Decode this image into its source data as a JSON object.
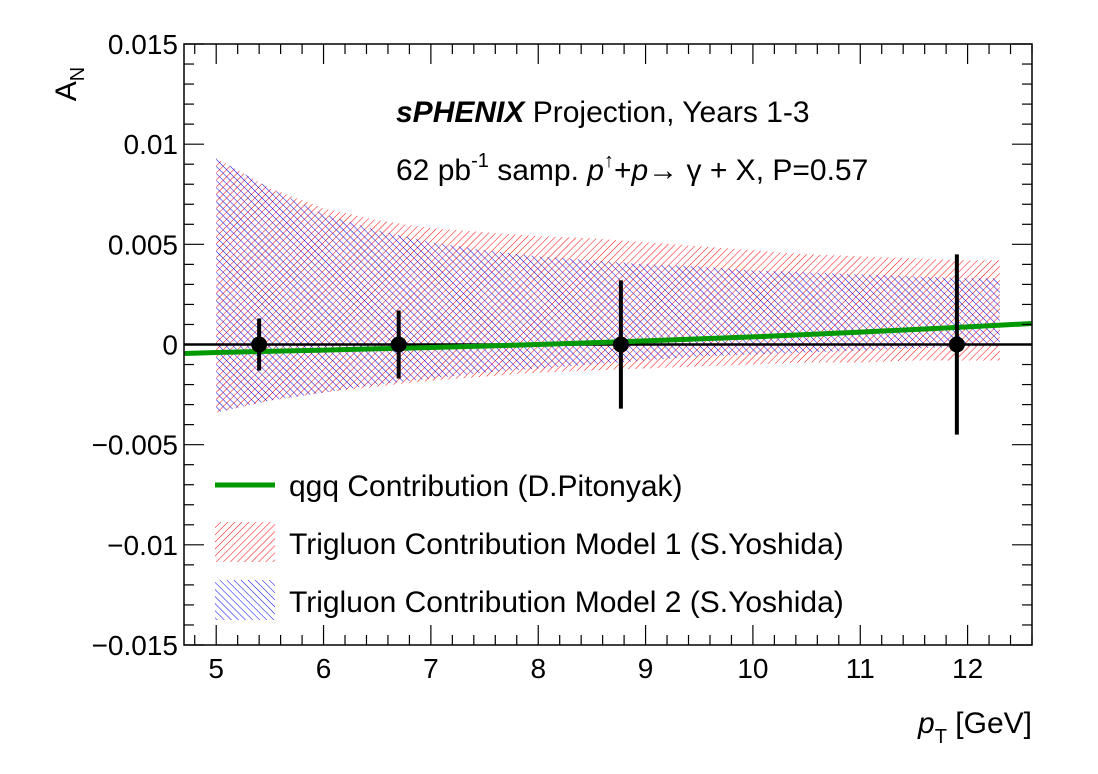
{
  "chart_data": {
    "type": "line",
    "xlabel_main": "p",
    "xlabel_sub": "T",
    "xlabel_unit": " [GeV]",
    "ylabel_main": "A",
    "ylabel_sub": "N",
    "xlim": [
      4.7,
      12.6
    ],
    "ylim": [
      -0.015,
      0.015
    ],
    "x_ticks": [
      5,
      6,
      7,
      8,
      9,
      10,
      11,
      12
    ],
    "x_tick_labels": [
      "5",
      "6",
      "7",
      "8",
      "9",
      "10",
      "11",
      "12"
    ],
    "y_ticks": [
      -0.015,
      -0.01,
      -0.005,
      0,
      0.005,
      0.01,
      0.015
    ],
    "y_tick_labels": [
      "−0.015",
      "−0.01",
      "−0.005",
      "0",
      "0.005",
      "0.01",
      "0.015"
    ],
    "annotation": {
      "line1_bold": "sPHENIX",
      "line1_rest": " Projection, Years 1-3",
      "line2_a": "62 pb",
      "line2_sup": "-1",
      "line2_b": " samp. ",
      "line2_p1": "p",
      "line2_arrow": "↑",
      "line2_plus": "+",
      "line2_p2": "p",
      "line2_rest": "→ γ + X, P=0.57"
    },
    "series": [
      {
        "name": "qgq Contribution (D.Pitonyak)",
        "kind": "line",
        "color": "#009900",
        "x": [
          4.7,
          5,
          6,
          7,
          8,
          9,
          10,
          11,
          12,
          12.6
        ],
        "y": [
          -0.00045,
          -0.0004,
          -0.00028,
          -0.00015,
          0.0,
          0.00018,
          0.00038,
          0.00062,
          0.00088,
          0.00105
        ]
      },
      {
        "name": "Trigluon Contribution Model 1 (S.Yoshida)",
        "kind": "band",
        "color": "#ff0000",
        "x": [
          5,
          5.5,
          6,
          6.5,
          7,
          7.5,
          8,
          8.5,
          9,
          9.5,
          10,
          10.5,
          11,
          11.5,
          12,
          12.3
        ],
        "upper": [
          0.0093,
          0.0078,
          0.0068,
          0.0062,
          0.0058,
          0.0056,
          0.0054,
          0.0053,
          0.0051,
          0.0049,
          0.0047,
          0.0045,
          0.0044,
          0.0043,
          0.0042,
          0.0042
        ],
        "lower": [
          -0.0034,
          -0.0028,
          -0.0024,
          -0.0021,
          -0.0018,
          -0.0016,
          -0.0014,
          -0.0013,
          -0.0012,
          -0.0011,
          -0.001,
          -0.0009,
          -0.0009,
          -0.0008,
          -0.0008,
          -0.0008
        ]
      },
      {
        "name": "Trigluon Contribution Model 2 (S.Yoshida)",
        "kind": "band",
        "color": "#0000ff",
        "x": [
          5,
          5.5,
          6,
          6.5,
          7,
          7.5,
          8,
          8.5,
          9,
          9.5,
          10,
          10.5,
          11,
          11.5,
          12,
          12.3
        ],
        "upper": [
          0.0093,
          0.0078,
          0.0065,
          0.0057,
          0.0051,
          0.0047,
          0.0044,
          0.0042,
          0.004,
          0.0039,
          0.0037,
          0.0036,
          0.0035,
          0.0034,
          0.0033,
          0.0033
        ],
        "lower": [
          -0.0034,
          -0.0028,
          -0.0024,
          -0.002,
          -0.0017,
          -0.0014,
          -0.0012,
          -0.001,
          -0.0008,
          -0.0006,
          -0.0005,
          -0.0004,
          -0.0003,
          -0.0002,
          -0.0001,
          -0.0001
        ]
      },
      {
        "name": "projection",
        "kind": "points",
        "color": "#000000",
        "x": [
          5.4,
          6.7,
          8.77,
          11.9
        ],
        "y": [
          0,
          0,
          0,
          0
        ],
        "err": [
          0.0013,
          0.0017,
          0.0032,
          0.0045
        ]
      }
    ],
    "legend_position": "bottom-left",
    "grid": false
  }
}
